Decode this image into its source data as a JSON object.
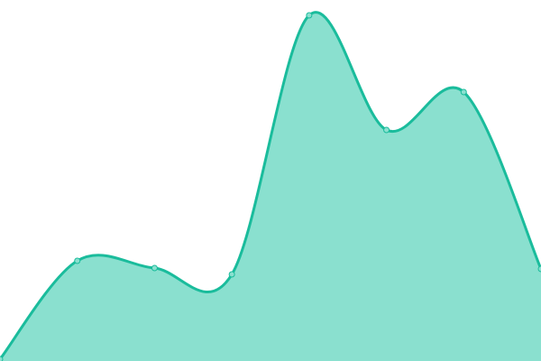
{
  "chart_data": {
    "type": "area",
    "x": [
      0,
      1,
      2,
      3,
      4,
      5,
      6,
      7
    ],
    "values": [
      2,
      111,
      103,
      96,
      383,
      256,
      298,
      102
    ],
    "ylim": [
      0,
      400
    ],
    "smooth": true,
    "grid": false,
    "axes_visible": false,
    "markers": true
  },
  "colors": {
    "line": "#1abc9c",
    "fill": "#8ae0cf",
    "marker_fill": "#8ae0cf",
    "background": "#ffffff"
  }
}
